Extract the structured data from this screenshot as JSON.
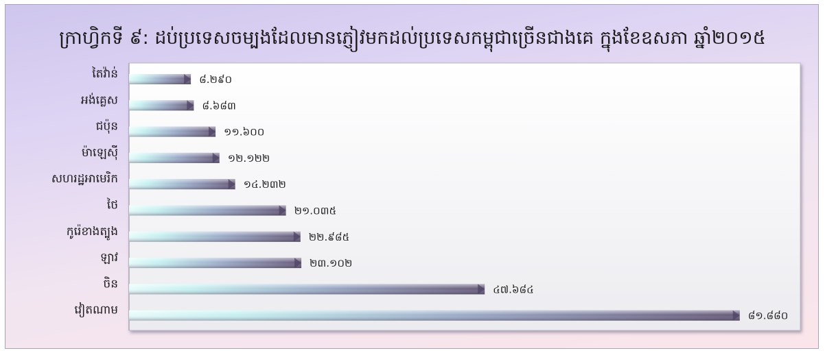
{
  "chart_data": {
    "type": "bar",
    "orientation": "horizontal",
    "title": "ក្រាហ្វិកទី ៩: ដប់ប្រទេសចម្បងដែលមានភ្ញៀវមកដល់ប្រទេសកម្ពុជាច្រើនជាងគេ ក្នុងខែឧសភា ឆ្នាំ២០១៥",
    "categories": [
      "តៃវ៉ាន់",
      "អង់គ្លេស",
      "ជប៉ុន",
      "ម៉ាឡេស៊ី",
      "សហរដ្ឋអាមេរិក",
      "ថៃ",
      "កូរ៉េខាងត្បូង",
      "ឡាវ",
      "ចិន",
      "វៀតណាម"
    ],
    "values": [
      8290,
      8683,
      11600,
      12122,
      14232,
      21035,
      22985,
      23102,
      47684,
      81880
    ],
    "data_labels": [
      "៨.២៩០",
      "៨.៦៨៣",
      "១១.៦០០",
      "១២.១២២",
      "១៤.២៣២",
      "២១.០៣៥",
      "២២.៩៨៥",
      "២៣.១០២",
      "៤៧.៦៨៤",
      "៨១.៨៨០"
    ],
    "xlim": [
      0,
      90000
    ],
    "xlabel": "",
    "ylabel": "",
    "grid": false,
    "legend": "none",
    "colors": {
      "bar_light": "#d8f6f6",
      "bar_mid": "#9fb1cc",
      "bar_dark": "#665978",
      "plot_bg": "#f4f4f6",
      "background_top": "#cfc6ee",
      "background_bottom": "#fbe5ea",
      "text": "#1a1a1a"
    }
  }
}
